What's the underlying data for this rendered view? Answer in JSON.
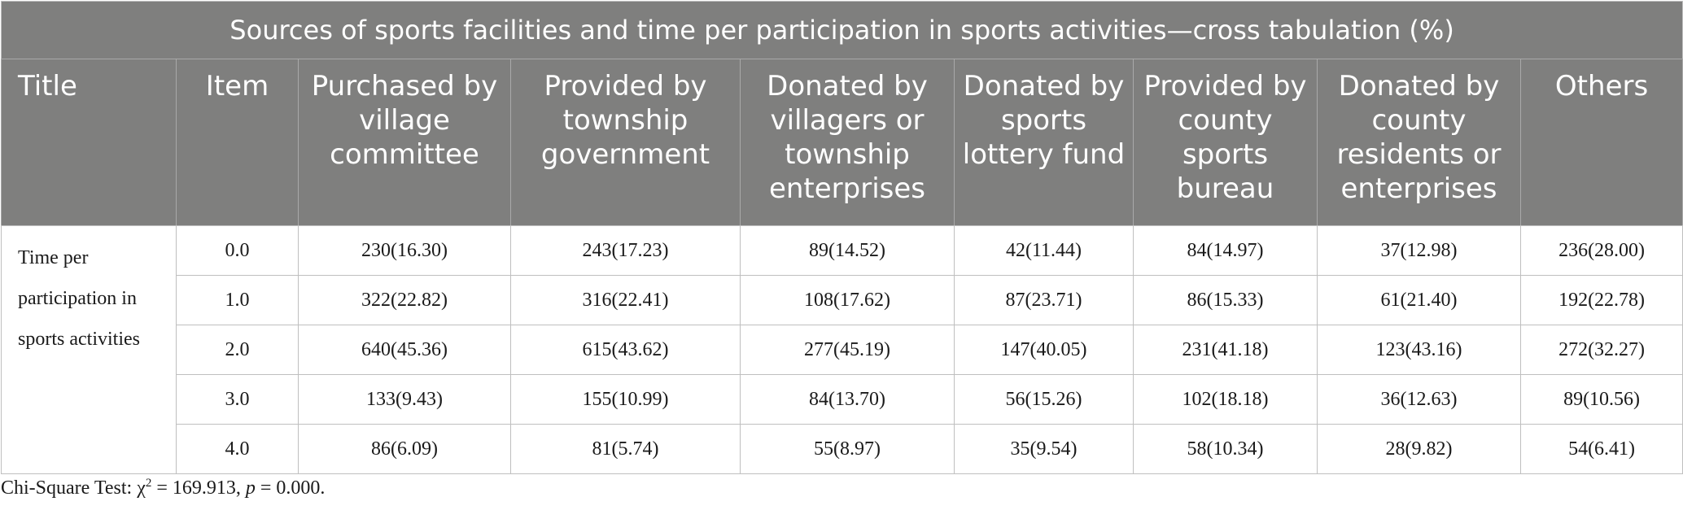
{
  "table": {
    "caption": "Sources of sports facilities and time per participation in sports activities—cross tabulation (%)",
    "headers": [
      "Title",
      "Item",
      "Purchased by village committee",
      "Provided by township government",
      "Donated by villagers or township enterprises",
      "Donated by sports lottery fund",
      "Provided by county sports bureau",
      "Donated by county residents or enterprises",
      "Others"
    ],
    "row_title": "Time per participation in sports activities",
    "rows": [
      {
        "item": "0.0",
        "cells": [
          "230(16.30)",
          "243(17.23)",
          "89(14.52)",
          "42(11.44)",
          "84(14.97)",
          "37(12.98)",
          "236(28.00)"
        ]
      },
      {
        "item": "1.0",
        "cells": [
          "322(22.82)",
          "316(22.41)",
          "108(17.62)",
          "87(23.71)",
          "86(15.33)",
          "61(21.40)",
          "192(22.78)"
        ]
      },
      {
        "item": "2.0",
        "cells": [
          "640(45.36)",
          "615(43.62)",
          "277(45.19)",
          "147(40.05)",
          "231(41.18)",
          "123(43.16)",
          "272(32.27)"
        ]
      },
      {
        "item": "3.0",
        "cells": [
          "133(9.43)",
          "155(10.99)",
          "84(13.70)",
          "56(15.26)",
          "102(18.18)",
          "36(12.63)",
          "89(10.56)"
        ]
      },
      {
        "item": "4.0",
        "cells": [
          "86(6.09)",
          "81(5.74)",
          "55(8.97)",
          "35(9.54)",
          "58(10.34)",
          "28(9.82)",
          "54(6.41)"
        ]
      }
    ]
  },
  "footnote": {
    "prefix": "Chi-Square Test: χ",
    "superscript": "2",
    "chi_value": " = 169.913, ",
    "p_label": "p",
    "p_value": " = 0.000."
  }
}
